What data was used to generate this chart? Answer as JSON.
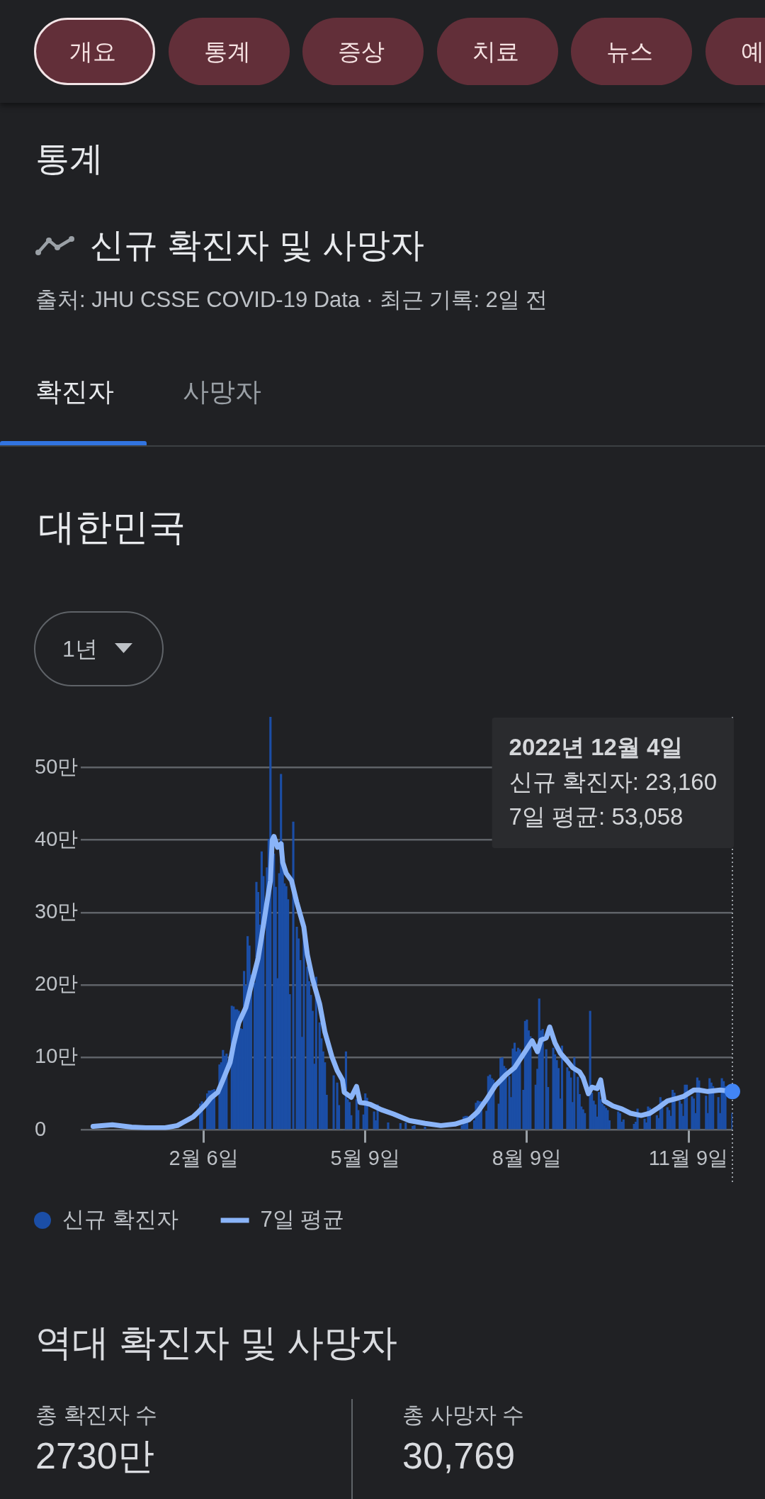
{
  "chart_data": [
    {
      "type": "other",
      "annotations": [
        "개요",
        "통계",
        "증상",
        "치료",
        "뉴스",
        "예"
      ]
    },
    {
      "type": "other",
      "title": "통계",
      "subtitle": "신규 확진자 및 사망자",
      "annotations": [
        "출처: JHU CSSE COVID-19 Data · 최근 기록: 2일 전",
        "확진자",
        "사망자"
      ]
    },
    {
      "type": "bar",
      "title": "대한민국",
      "subtitle": "1년",
      "annotations": [
        "2022년 12월 4일\n신규 확진자: 23,160\n7일 평균: 53,058"
      ],
      "x": [
        "2022-02-04",
        "2022-02-05",
        "2022-02-06",
        "2022-02-07",
        "2022-02-08",
        "2022-02-09",
        "2022-02-10",
        "2022-02-11",
        "2022-02-12",
        "2022-02-13",
        "2022-02-14",
        "2022-02-15",
        "2022-02-16",
        "2022-02-17",
        "2022-02-18",
        "2022-02-19",
        "2022-02-20",
        "2022-02-21",
        "2022-02-22",
        "2022-02-23",
        "2022-02-24",
        "2022-02-25",
        "2022-02-26",
        "2022-02-27",
        "2022-02-28",
        "2022-03-01",
        "2022-03-02",
        "2022-03-03",
        "2022-03-04",
        "2022-03-05",
        "2022-03-06",
        "2022-03-07",
        "2022-03-08",
        "2022-03-09",
        "2022-03-10",
        "2022-03-11",
        "2022-03-12",
        "2022-03-13",
        "2022-03-14",
        "2022-03-15",
        "2022-03-16",
        "2022-03-17",
        "2022-03-18",
        "2022-03-19",
        "2022-03-20",
        "2022-03-21",
        "2022-03-22",
        "2022-03-23",
        "2022-03-24",
        "2022-03-25",
        "2022-03-26",
        "2022-03-27",
        "2022-03-28",
        "2022-03-29",
        "2022-03-30",
        "2022-03-31",
        "2022-04-01",
        "2022-04-02",
        "2022-04-03",
        "2022-04-04",
        "2022-04-05",
        "2022-04-06",
        "2022-04-07",
        "2022-04-08",
        "2022-04-09",
        "2022-04-10",
        "2022-04-11",
        "2022-04-12",
        "2022-04-13",
        "2022-04-14",
        "2022-04-15",
        "2022-04-16",
        "2022-04-17",
        "2022-04-18",
        "2022-04-19",
        "2022-04-20",
        "2022-04-21",
        "2022-04-22",
        "2022-04-23",
        "2022-04-24",
        "2022-04-25",
        "2022-04-26",
        "2022-04-27",
        "2022-04-28",
        "2022-04-29",
        "2022-04-30",
        "2022-05-01",
        "2022-05-02",
        "2022-05-03",
        "2022-05-04",
        "2022-05-05",
        "2022-05-06",
        "2022-05-07",
        "2022-05-08",
        "2022-05-09",
        "2022-05-10",
        "2022-05-11",
        "2022-05-12",
        "2022-05-13",
        "2022-05-14",
        "2022-05-15",
        "2022-05-16",
        "2022-05-17",
        "2022-05-18",
        "2022-05-19",
        "2022-05-20",
        "2022-05-21",
        "2022-05-22",
        "2022-05-23",
        "2022-05-24",
        "2022-05-25",
        "2022-05-26",
        "2022-05-27",
        "2022-05-28",
        "2022-05-29",
        "2022-05-30",
        "2022-05-31",
        "2022-06-01",
        "2022-06-02",
        "2022-06-03",
        "2022-06-04",
        "2022-06-05",
        "2022-06-06",
        "2022-06-07",
        "2022-06-08",
        "2022-06-09",
        "2022-06-10",
        "2022-06-11",
        "2022-06-12",
        "2022-06-13",
        "2022-06-14",
        "2022-06-15",
        "2022-06-16",
        "2022-06-17",
        "2022-06-18",
        "2022-06-19",
        "2022-06-20",
        "2022-06-21",
        "2022-06-22",
        "2022-06-23",
        "2022-06-24",
        "2022-06-25",
        "2022-06-26",
        "2022-06-27",
        "2022-06-28",
        "2022-06-29",
        "2022-06-30",
        "2022-07-01",
        "2022-07-02",
        "2022-07-03",
        "2022-07-04",
        "2022-07-05",
        "2022-07-06",
        "2022-07-07",
        "2022-07-08",
        "2022-07-09",
        "2022-07-10",
        "2022-07-11",
        "2022-07-12",
        "2022-07-13",
        "2022-07-14",
        "2022-07-15",
        "2022-07-16",
        "2022-07-17",
        "2022-07-18",
        "2022-07-19",
        "2022-07-20",
        "2022-07-21",
        "2022-07-22",
        "2022-07-23",
        "2022-07-24",
        "2022-07-25",
        "2022-07-26",
        "2022-07-27",
        "2022-07-28",
        "2022-07-29",
        "2022-07-30",
        "2022-07-31",
        "2022-08-01",
        "2022-08-02",
        "2022-08-03",
        "2022-08-04",
        "2022-08-05",
        "2022-08-06",
        "2022-08-07",
        "2022-08-08",
        "2022-08-09",
        "2022-08-10",
        "2022-08-11",
        "2022-08-12",
        "2022-08-13",
        "2022-08-14",
        "2022-08-15",
        "2022-08-16",
        "2022-08-17",
        "2022-08-18",
        "2022-08-19",
        "2022-08-20",
        "2022-08-21",
        "2022-08-22",
        "2022-08-23",
        "2022-08-24",
        "2022-08-25",
        "2022-08-26",
        "2022-08-27",
        "2022-08-28",
        "2022-08-29",
        "2022-08-30",
        "2022-08-31",
        "2022-09-01",
        "2022-09-02",
        "2022-09-03",
        "2022-09-04",
        "2022-09-05",
        "2022-09-06",
        "2022-09-07",
        "2022-09-08",
        "2022-09-09",
        "2022-09-10",
        "2022-09-11",
        "2022-09-12",
        "2022-09-13",
        "2022-09-14",
        "2022-09-15",
        "2022-09-16",
        "2022-09-17",
        "2022-09-18",
        "2022-09-19",
        "2022-09-20",
        "2022-09-21",
        "2022-09-22",
        "2022-09-23",
        "2022-09-24",
        "2022-09-25",
        "2022-09-26",
        "2022-09-27",
        "2022-09-28",
        "2022-09-29",
        "2022-09-30",
        "2022-10-01",
        "2022-10-02",
        "2022-10-03",
        "2022-10-04",
        "2022-10-05",
        "2022-10-06",
        "2022-10-07",
        "2022-10-08",
        "2022-10-09",
        "2022-10-10",
        "2022-10-11",
        "2022-10-12",
        "2022-10-13",
        "2022-10-14",
        "2022-10-15",
        "2022-10-16",
        "2022-10-17",
        "2022-10-18",
        "2022-10-19",
        "2022-10-20",
        "2022-10-21",
        "2022-10-22",
        "2022-10-23",
        "2022-10-24",
        "2022-10-25",
        "2022-10-26",
        "2022-10-27",
        "2022-10-28",
        "2022-10-29",
        "2022-10-30",
        "2022-10-31",
        "2022-11-01",
        "2022-11-02",
        "2022-11-03",
        "2022-11-04",
        "2022-11-05",
        "2022-11-06",
        "2022-11-07",
        "2022-11-08",
        "2022-11-09",
        "2022-11-10",
        "2022-11-11",
        "2022-11-12",
        "2022-11-13",
        "2022-11-14",
        "2022-11-15",
        "2022-11-16",
        "2022-11-17",
        "2022-11-18",
        "2022-11-19",
        "2022-11-20",
        "2022-11-21",
        "2022-11-22",
        "2022-11-23",
        "2022-11-24",
        "2022-11-25",
        "2022-11-26",
        "2022-11-27",
        "2022-11-28",
        "2022-11-29",
        "2022-11-30",
        "2022-12-01",
        "2022-12-02",
        "2022-12-03",
        "2022-12-04"
      ],
      "xlim": [
        "2021-11-28",
        "2022-12-04"
      ],
      "xticks": [
        {
          "value": "2022-02-06",
          "label": "2월 6일"
        },
        {
          "value": "2022-05-09",
          "label": "5월 9일"
        },
        {
          "value": "2022-08-09",
          "label": "8월 9일"
        },
        {
          "value": "2022-11-09",
          "label": "11월 9일"
        }
      ],
      "ylim": [
        0,
        57
      ],
      "yticks": [
        0,
        {
          "value": 10,
          "label": "10만"
        },
        {
          "value": 20,
          "label": "20만"
        },
        {
          "value": 30,
          "label": "30만"
        },
        {
          "value": 40,
          "label": "40만"
        },
        {
          "value": 50,
          "label": "50만"
        }
      ],
      "grid": "y",
      "legend": "bottom left",
      "ref_lines": [
        {
          "axis": "x",
          "value": "2022-12-04",
          "line_style": "dotted",
          "color": "#9aa0a6"
        }
      ],
      "series": [
        {
          "name": "신규 확진자",
          "type": "bar",
          "color": "#1b4ea6",
          "values": [
            3.6,
            3.9,
            null,
            null,
            5,
            5.4,
            5.4,
            5.5,
            5.6,
            null,
            null,
            9,
            9.3,
            11,
            10.2,
            10.5,
            null,
            null,
            17.1,
            17,
            16.6,
            16.6,
            16.4,
            14,
            13.9,
            21.9,
            19.9,
            26.7,
            25.4,
            21.4,
            null,
            20.3,
            34.2,
            32.8,
            28.3,
            38.4,
            35,
            null,
            36.2,
            40.1,
            57,
            null,
            38.1,
            33.5,
            20.9,
            35.4,
            49.1,
            39.6,
            34,
            33.6,
            31.8,
            18.7,
            null,
            42.5,
            null,
            28,
            26.4,
            23.4,
            12.8,
            26.6,
            null,
            22.5,
            20.5,
            18.6,
            16.4,
            9.1,
            21.1,
            null,
            14.8,
            12.6,
            10.8,
            9.3,
            4.8,
            null,
            null,
            null,
            7.5,
            null,
            6.5,
            3.4,
            null,
            null,
            0,
            10.8,
            4.2,
            3.8,
            2,
            null,
            null,
            4.2,
            2.7,
            null,
            null,
            2.1,
            5,
            4.4,
            null,
            null,
            null,
            2.5,
            1.3,
            3.5,
            null,
            null,
            null,
            null,
            null,
            1,
            null,
            null,
            null,
            null,
            null,
            null,
            0.9,
            null,
            null,
            1,
            null,
            null,
            null,
            0.5,
            0.6,
            null,
            null,
            null,
            null,
            null,
            0.4,
            null,
            null,
            null,
            null,
            null,
            null,
            null,
            null,
            null,
            null,
            null,
            null,
            null,
            null,
            null,
            null,
            null,
            null,
            null,
            null,
            0.6,
            1.8,
            1.9,
            1.9,
            null,
            null,
            null,
            1.3,
            3.7,
            4,
            3.9,
            3.9,
            null,
            null,
            2.6,
            7.4,
            7.6,
            7.1,
            6.9,
            null,
            null,
            3.6,
            9.9,
            10,
            8.8,
            8.5,
            null,
            7.4,
            4.5,
            11.2,
            12,
            10.8,
            11.3,
            11.1,
            null,
            5.5,
            15,
            15.2,
            13.7,
            12.9,
            null,
            null,
            6.2,
            8.4,
            18.1,
            13.7,
            13.9,
            null,
            11.1,
            5.9,
            null,
            null,
            11.3,
            10.4,
            9.6,
            8.5,
            4.3,
            11.6,
            null,
            null,
            8.6,
            8.1,
            7.2,
            3.8,
            10,
            null,
            7.3,
            4.9,
            3.2,
            2.8,
            2.3,
            null,
            0,
            16.4,
            5.1,
            4,
            3.5,
            1.8,
            5.2,
            4.2,
            3.6,
            3.3,
            3,
            2.7,
            1.3,
            null,
            null,
            null,
            null,
            2.5,
            2.3,
            1.1,
            1.4,
            null,
            null,
            null,
            null,
            null,
            0.8,
            1.1,
            2.9,
            null,
            null,
            null,
            1.5,
            1,
            3.2,
            3,
            null,
            null,
            null,
            2,
            1.6,
            4.5,
            4,
            null,
            null,
            3.1,
            2.7,
            1.9,
            5.5,
            5.1,
            null,
            null,
            4,
            3.6,
            1.9,
            6.2,
            6.2,
            null,
            null,
            4.6,
            4.3,
            2.3,
            7.2,
            6.8,
            null,
            null,
            null,
            4.7,
            2.3,
            7.1,
            6.5,
            6,
            null,
            null,
            4.5,
            2.3,
            7.1,
            6.7,
            6,
            null,
            null,
            null,
            2.316
          ]
        },
        {
          "name": "7일 평균",
          "type": "line",
          "color": "#8ab4f8",
          "x": [
            "2021-12-05",
            "2021-12-16",
            "2021-12-27",
            "2022-01-04",
            "2022-01-15",
            "2022-01-22",
            "2022-01-25",
            "2022-01-31",
            "2022-02-03",
            "2022-02-07",
            "2022-02-10",
            "2022-02-14",
            "2022-02-17",
            "2022-02-21",
            "2022-02-23",
            "2022-02-26",
            "2022-03-02",
            "2022-03-05",
            "2022-03-09",
            "2022-03-11",
            "2022-03-14",
            "2022-03-16",
            "2022-03-17",
            "2022-03-18",
            "2022-03-20",
            "2022-03-22",
            "2022-03-23",
            "2022-03-25",
            "2022-03-28",
            "2022-03-31",
            "2022-04-04",
            "2022-04-06",
            "2022-04-09",
            "2022-04-13",
            "2022-04-16",
            "2022-04-20",
            "2022-04-23",
            "2022-04-26",
            "2022-04-27",
            "2022-05-01",
            "2022-05-04",
            "2022-05-06",
            "2022-05-09",
            "2022-05-12",
            "2022-05-18",
            "2022-05-25",
            "2022-06-03",
            "2022-06-12",
            "2022-06-21",
            "2022-06-29",
            "2022-07-07",
            "2022-07-12",
            "2022-07-17",
            "2022-07-22",
            "2022-07-28",
            "2022-08-02",
            "2022-08-05",
            "2022-08-09",
            "2022-08-12",
            "2022-08-15",
            "2022-08-17",
            "2022-08-20",
            "2022-08-22",
            "2022-08-25",
            "2022-08-28",
            "2022-09-01",
            "2022-09-04",
            "2022-09-08",
            "2022-09-10",
            "2022-09-13",
            "2022-09-15",
            "2022-09-18",
            "2022-09-20",
            "2022-09-22",
            "2022-09-27",
            "2022-10-02",
            "2022-10-07",
            "2022-10-13",
            "2022-10-18",
            "2022-10-23",
            "2022-10-28",
            "2022-11-03",
            "2022-11-06",
            "2022-11-12",
            "2022-11-15",
            "2022-11-20",
            "2022-11-27",
            "2022-12-04"
          ],
          "values": [
            0.5,
            0.7,
            0.4,
            0.3,
            0.3,
            0.6,
            1,
            1.8,
            2.5,
            3.5,
            4.4,
            5.2,
            6.9,
            9.3,
            11.8,
            14.8,
            16.9,
            19.9,
            23.7,
            26.7,
            31.4,
            34.4,
            40,
            40.5,
            39,
            39.5,
            36.9,
            35.4,
            34.4,
            31.4,
            28,
            24.2,
            20.8,
            17.4,
            13.5,
            10.1,
            8.2,
            6.9,
            5.2,
            4.5,
            6,
            3.8,
            3.7,
            3.5,
            2.8,
            2.2,
            1.3,
            0.9,
            0.6,
            0.8,
            1.4,
            2.5,
            4.2,
            6.1,
            7.6,
            8.6,
            9.7,
            11.2,
            12.3,
            10.8,
            12.4,
            12.7,
            14.2,
            12,
            10.6,
            9.5,
            8.6,
            8,
            7.2,
            5,
            5.9,
            5.7,
            6.9,
            4,
            3.3,
            2.9,
            2.3,
            2,
            2.3,
            3.1,
            4,
            4.4,
            4.6,
            5.5,
            5.5,
            5.3,
            5.5,
            5.3058
          ]
        },
        {
          "type": "scatter",
          "color": "#4285f4",
          "marker": "circle",
          "x": [
            "2022-12-04"
          ],
          "values": [
            5.3058
          ]
        }
      ]
    },
    {
      "type": "other",
      "title": "역대 확진자 및 사망자",
      "annotations": [
        "총 확진자 수",
        "2730만",
        "총 사망자 수",
        "30,769"
      ]
    }
  ]
}
